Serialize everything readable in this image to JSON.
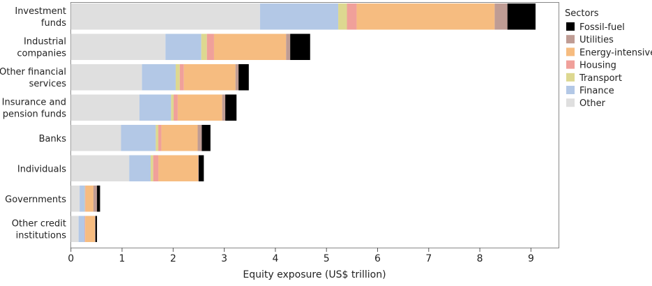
{
  "chart_data": {
    "type": "bar",
    "orientation": "horizontal",
    "stacked": true,
    "xlabel": "Equity exposure (US$ trillion)",
    "xlim": [
      0,
      9.5
    ],
    "xticks": [
      "0",
      "1",
      "2",
      "3",
      "4",
      "5",
      "6",
      "7",
      "8",
      "9"
    ],
    "grid": false,
    "legend_title": "Sectors",
    "legend_placement": "right",
    "categories": [
      [
        "Investment",
        "funds"
      ],
      [
        "Industrial",
        "companies"
      ],
      [
        "Other financial",
        "services"
      ],
      [
        "Insurance and",
        "pension funds"
      ],
      [
        "Banks"
      ],
      [
        "Individuals"
      ],
      [
        "Governments"
      ],
      [
        "Other credit",
        "institutions"
      ]
    ],
    "series": [
      {
        "name": "Other",
        "color": "#dfdfdf",
        "values": [
          3.7,
          1.85,
          1.39,
          1.34,
          0.98,
          1.14,
          0.17,
          0.15
        ]
      },
      {
        "name": "Finance",
        "color": "#b3c8e6",
        "values": [
          1.53,
          0.7,
          0.66,
          0.62,
          0.68,
          0.42,
          0.1,
          0.12
        ]
      },
      {
        "name": "Transport",
        "color": "#ddd890",
        "values": [
          0.17,
          0.11,
          0.08,
          0.05,
          0.05,
          0.05,
          0.01,
          0.0
        ]
      },
      {
        "name": "Housing",
        "color": "#f0a09a",
        "values": [
          0.19,
          0.14,
          0.08,
          0.08,
          0.06,
          0.1,
          0.01,
          0.01
        ]
      },
      {
        "name": "Energy-intensive",
        "color": "#f6bc80",
        "values": [
          2.7,
          1.41,
          1.01,
          0.87,
          0.71,
          0.78,
          0.15,
          0.19
        ]
      },
      {
        "name": "Utilities",
        "color": "#bf9c94",
        "values": [
          0.25,
          0.08,
          0.06,
          0.06,
          0.08,
          0.01,
          0.07,
          0.01
        ]
      },
      {
        "name": "Fossil-fuel",
        "color": "#000000",
        "values": [
          0.55,
          0.39,
          0.2,
          0.22,
          0.17,
          0.1,
          0.06,
          0.03
        ]
      }
    ],
    "legend_order": [
      "Fossil-fuel",
      "Utilities",
      "Energy-intensive",
      "Housing",
      "Transport",
      "Finance",
      "Other"
    ]
  }
}
